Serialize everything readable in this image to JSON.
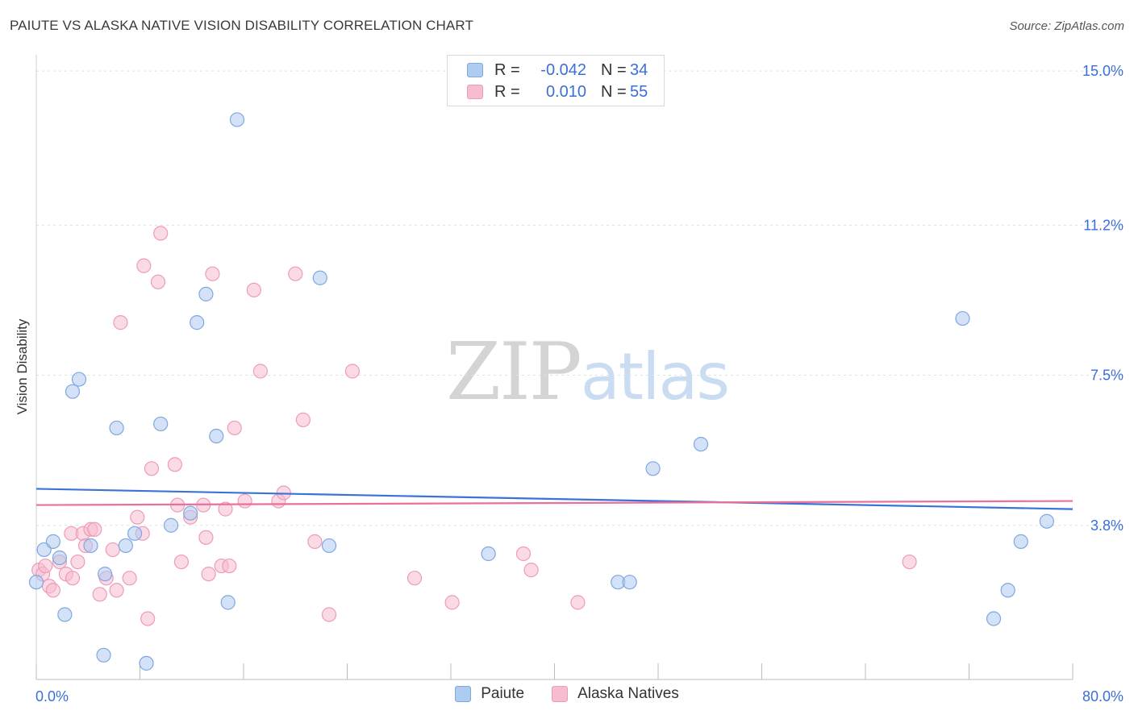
{
  "header": {
    "title": "PAIUTE VS ALASKA NATIVE VISION DISABILITY CORRELATION CHART",
    "source": "Source: ZipAtlas.com"
  },
  "watermark": {
    "zip": "ZIP",
    "atlas": "atlas"
  },
  "legend": {
    "rows": [
      {
        "r_label": "R =",
        "r_value": "-0.042",
        "n_label": "N =",
        "n_value": "34"
      },
      {
        "r_label": "R =",
        "r_value": "0.010",
        "n_label": "N =",
        "n_value": "55"
      }
    ]
  },
  "bottom_legend": {
    "series1": "Paiute",
    "series2": "Alaska Natives"
  },
  "colors": {
    "paiute_fill": "#aecbf0",
    "paiute_stroke": "#7fa7e0",
    "paiute_line": "#3a72d6",
    "alaska_fill": "#f6bcd0",
    "alaska_stroke": "#ee9bb9",
    "alaska_line": "#ea6f9c",
    "axis_text": "#3a6fd8"
  },
  "chart_data": {
    "type": "scatter",
    "title": "PAIUTE VS ALASKA NATIVE VISION DISABILITY CORRELATION CHART",
    "xlabel": "",
    "ylabel": "Vision Disability",
    "xlim": [
      0,
      80
    ],
    "ylim": [
      0,
      15.2
    ],
    "x_tick_labels": [
      "0.0%",
      "80.0%"
    ],
    "y_ticks": [
      3.8,
      7.5,
      11.2,
      15.0
    ],
    "y_tick_labels": [
      "3.8%",
      "7.5%",
      "11.2%",
      "15.0%"
    ],
    "grid": true,
    "series": [
      {
        "name": "Paiute",
        "r": -0.042,
        "n": 34,
        "trend": {
          "x": [
            0,
            80
          ],
          "y": [
            4.7,
            4.2
          ]
        },
        "points": [
          [
            0.0,
            2.4
          ],
          [
            0.6,
            3.2
          ],
          [
            1.3,
            3.4
          ],
          [
            1.8,
            3.0
          ],
          [
            2.2,
            1.6
          ],
          [
            2.8,
            7.1
          ],
          [
            3.3,
            7.4
          ],
          [
            4.2,
            3.3
          ],
          [
            5.2,
            0.6
          ],
          [
            5.3,
            2.6
          ],
          [
            6.2,
            6.2
          ],
          [
            6.9,
            3.3
          ],
          [
            7.6,
            3.6
          ],
          [
            8.5,
            0.4
          ],
          [
            9.6,
            6.3
          ],
          [
            10.4,
            3.8
          ],
          [
            11.9,
            4.1
          ],
          [
            12.4,
            8.8
          ],
          [
            13.1,
            9.5
          ],
          [
            13.9,
            6.0
          ],
          [
            14.8,
            1.9
          ],
          [
            15.5,
            13.8
          ],
          [
            21.9,
            9.9
          ],
          [
            22.6,
            3.3
          ],
          [
            34.9,
            3.1
          ],
          [
            44.9,
            2.4
          ],
          [
            45.8,
            2.4
          ],
          [
            47.6,
            5.2
          ],
          [
            51.3,
            5.8
          ],
          [
            71.5,
            8.9
          ],
          [
            73.9,
            1.5
          ],
          [
            75.0,
            2.2
          ],
          [
            76.0,
            3.4
          ],
          [
            78.0,
            3.9
          ]
        ]
      },
      {
        "name": "Alaska Natives",
        "r": 0.01,
        "n": 55,
        "trend": {
          "x": [
            0,
            80
          ],
          "y": [
            4.3,
            4.4
          ]
        },
        "points": [
          [
            0.2,
            2.7
          ],
          [
            0.5,
            2.6
          ],
          [
            0.7,
            2.8
          ],
          [
            1.0,
            2.3
          ],
          [
            1.3,
            2.2
          ],
          [
            1.8,
            2.9
          ],
          [
            2.3,
            2.6
          ],
          [
            2.7,
            3.6
          ],
          [
            2.8,
            2.5
          ],
          [
            3.2,
            2.9
          ],
          [
            3.6,
            3.6
          ],
          [
            3.8,
            3.3
          ],
          [
            4.2,
            3.7
          ],
          [
            4.5,
            3.7
          ],
          [
            4.9,
            2.1
          ],
          [
            5.4,
            2.5
          ],
          [
            5.9,
            3.2
          ],
          [
            6.2,
            2.2
          ],
          [
            6.5,
            8.8
          ],
          [
            7.2,
            2.5
          ],
          [
            7.8,
            4.0
          ],
          [
            8.2,
            3.6
          ],
          [
            8.3,
            10.2
          ],
          [
            8.6,
            1.5
          ],
          [
            8.9,
            5.2
          ],
          [
            9.4,
            9.8
          ],
          [
            9.6,
            11.0
          ],
          [
            10.7,
            5.3
          ],
          [
            10.9,
            4.3
          ],
          [
            11.2,
            2.9
          ],
          [
            11.9,
            4.0
          ],
          [
            12.9,
            4.3
          ],
          [
            13.1,
            3.5
          ],
          [
            13.3,
            2.6
          ],
          [
            13.6,
            10.0
          ],
          [
            14.3,
            2.8
          ],
          [
            14.6,
            4.2
          ],
          [
            14.9,
            2.8
          ],
          [
            15.3,
            6.2
          ],
          [
            16.1,
            4.4
          ],
          [
            16.8,
            9.6
          ],
          [
            17.3,
            7.6
          ],
          [
            18.7,
            4.4
          ],
          [
            19.1,
            4.6
          ],
          [
            20.0,
            10.0
          ],
          [
            20.6,
            6.4
          ],
          [
            21.5,
            3.4
          ],
          [
            22.6,
            1.6
          ],
          [
            24.4,
            7.6
          ],
          [
            29.2,
            2.5
          ],
          [
            32.1,
            1.9
          ],
          [
            37.6,
            3.1
          ],
          [
            38.2,
            2.7
          ],
          [
            41.8,
            1.9
          ],
          [
            67.4,
            2.9
          ]
        ]
      }
    ]
  }
}
